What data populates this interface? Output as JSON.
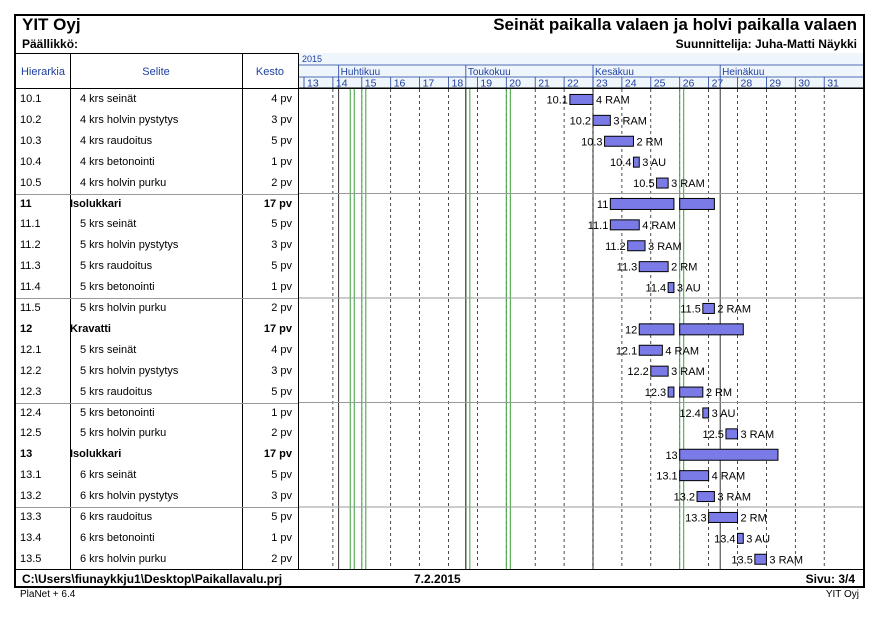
{
  "header": {
    "company": "YIT Oyj",
    "manager": "Päällikkö:",
    "title": "Seinät paikalla valaen ja holvi paikalla valaen",
    "designer": "Suunnittelija: Juha-Matti Näykki"
  },
  "columns": {
    "hierarchy": "Hierarkia",
    "description": "Selite",
    "duration": "Kesto"
  },
  "footer": {
    "path": "C:\\Users\\fiunaykkju1\\Desktop\\Paikallavalu.prj",
    "date": "7.2.2015",
    "page": "Sivu: 3/4",
    "software": "PlaNet + 6.4",
    "company_right": "YIT Oyj"
  },
  "colors": {
    "bar_fill": "#7b7be8",
    "bar_stroke": "#000000",
    "header_blue": "#1f3fa0",
    "highlight_green": "#3aa03a",
    "timescale_bg": "#eef5fb"
  },
  "chart_data": {
    "type": "gantt",
    "year": "2015",
    "months": [
      {
        "name": "Huhtikuu",
        "start_week": 14.2
      },
      {
        "name": "Toukokuu",
        "start_week": 18.6
      },
      {
        "name": "Kesäkuu",
        "start_week": 23.0
      },
      {
        "name": "Heinäkuu",
        "start_week": 27.4
      }
    ],
    "weeks": [
      "13",
      "14",
      "15",
      "16",
      "17",
      "18",
      "19",
      "20",
      "21",
      "22",
      "23",
      "24",
      "25",
      "26",
      "27",
      "28",
      "29",
      "30",
      "31"
    ],
    "green_weeks": [
      14.6,
      15.0,
      18.6,
      20.0,
      26.0
    ],
    "rows": [
      {
        "id": "10.1",
        "desc": "4 krs seinät",
        "dur": "4 pv",
        "bold": false,
        "segments": [
          [
            22.2,
            23.0
          ]
        ],
        "res": "4 RAM"
      },
      {
        "id": "10.2",
        "desc": "4 krs holvin pystytys",
        "dur": "3 pv",
        "bold": false,
        "segments": [
          [
            23.0,
            23.6
          ]
        ],
        "res": "3 RAM"
      },
      {
        "id": "10.3",
        "desc": "4 krs raudoitus",
        "dur": "5 pv",
        "bold": false,
        "segments": [
          [
            23.4,
            24.4
          ]
        ],
        "res": "2 RM"
      },
      {
        "id": "10.4",
        "desc": "4 krs betonointi",
        "dur": "1 pv",
        "bold": false,
        "segments": [
          [
            24.4,
            24.6
          ]
        ],
        "res": "3 AU"
      },
      {
        "id": "10.5",
        "desc": "4 krs holvin purku",
        "dur": "2 pv",
        "bold": false,
        "segments": [
          [
            25.2,
            25.6
          ]
        ],
        "res": "3 RAM"
      },
      {
        "id": "11",
        "desc": "Isolukkari",
        "dur": "17 pv",
        "bold": true,
        "segments": [
          [
            23.6,
            25.8
          ],
          [
            26.0,
            27.2
          ]
        ],
        "res": ""
      },
      {
        "id": "11.1",
        "desc": "5 krs seinät",
        "dur": "5 pv",
        "bold": false,
        "segments": [
          [
            23.6,
            24.6
          ]
        ],
        "res": "4 RAM"
      },
      {
        "id": "11.2",
        "desc": "5 krs holvin pystytys",
        "dur": "3 pv",
        "bold": false,
        "segments": [
          [
            24.2,
            24.8
          ]
        ],
        "res": "3 RAM"
      },
      {
        "id": "11.3",
        "desc": "5 krs raudoitus",
        "dur": "5 pv",
        "bold": false,
        "segments": [
          [
            24.6,
            25.6
          ]
        ],
        "res": "2 RM"
      },
      {
        "id": "11.4",
        "desc": "5 krs betonointi",
        "dur": "1 pv",
        "bold": false,
        "segments": [
          [
            25.6,
            25.8
          ]
        ],
        "res": "3 AU"
      },
      {
        "id": "11.5",
        "desc": "5 krs holvin purku",
        "dur": "2 pv",
        "bold": false,
        "segments": [
          [
            26.8,
            27.2
          ]
        ],
        "res": "2 RAM"
      },
      {
        "id": "12",
        "desc": "Kravatti",
        "dur": "17 pv",
        "bold": true,
        "segments": [
          [
            24.6,
            25.8
          ],
          [
            26.0,
            28.2
          ]
        ],
        "res": ""
      },
      {
        "id": "12.1",
        "desc": "5 krs seinät",
        "dur": "4 pv",
        "bold": false,
        "segments": [
          [
            24.6,
            25.4
          ]
        ],
        "res": "4 RAM"
      },
      {
        "id": "12.2",
        "desc": "5 krs holvin pystytys",
        "dur": "3 pv",
        "bold": false,
        "segments": [
          [
            25.0,
            25.6
          ]
        ],
        "res": "3 RAM"
      },
      {
        "id": "12.3",
        "desc": "5 krs raudoitus",
        "dur": "5 pv",
        "bold": false,
        "segments": [
          [
            25.6,
            25.8
          ],
          [
            26.0,
            26.8
          ]
        ],
        "res": "2 RM"
      },
      {
        "id": "12.4",
        "desc": "5 krs betonointi",
        "dur": "1 pv",
        "bold": false,
        "segments": [
          [
            26.8,
            27.0
          ]
        ],
        "res": "3 AU"
      },
      {
        "id": "12.5",
        "desc": "5 krs holvin purku",
        "dur": "2 pv",
        "bold": false,
        "segments": [
          [
            27.6,
            28.0
          ]
        ],
        "res": "3 RAM"
      },
      {
        "id": "13",
        "desc": "Isolukkari",
        "dur": "17 pv",
        "bold": true,
        "segments": [
          [
            26.0,
            29.4
          ]
        ],
        "res": ""
      },
      {
        "id": "13.1",
        "desc": "6 krs seinät",
        "dur": "5 pv",
        "bold": false,
        "segments": [
          [
            26.0,
            27.0
          ]
        ],
        "res": "4 RAM"
      },
      {
        "id": "13.2",
        "desc": "6 krs holvin pystytys",
        "dur": "3 pv",
        "bold": false,
        "segments": [
          [
            26.6,
            27.2
          ]
        ],
        "res": "3 RAM"
      },
      {
        "id": "13.3",
        "desc": "6 krs raudoitus",
        "dur": "5 pv",
        "bold": false,
        "segments": [
          [
            27.0,
            28.0
          ]
        ],
        "res": "2 RM"
      },
      {
        "id": "13.4",
        "desc": "6 krs betonointi",
        "dur": "1 pv",
        "bold": false,
        "segments": [
          [
            28.0,
            28.2
          ]
        ],
        "res": "3 AU"
      },
      {
        "id": "13.5",
        "desc": "6 krs holvin purku",
        "dur": "2 pv",
        "bold": false,
        "segments": [
          [
            28.6,
            29.0
          ]
        ],
        "res": "3 RAM"
      }
    ]
  }
}
